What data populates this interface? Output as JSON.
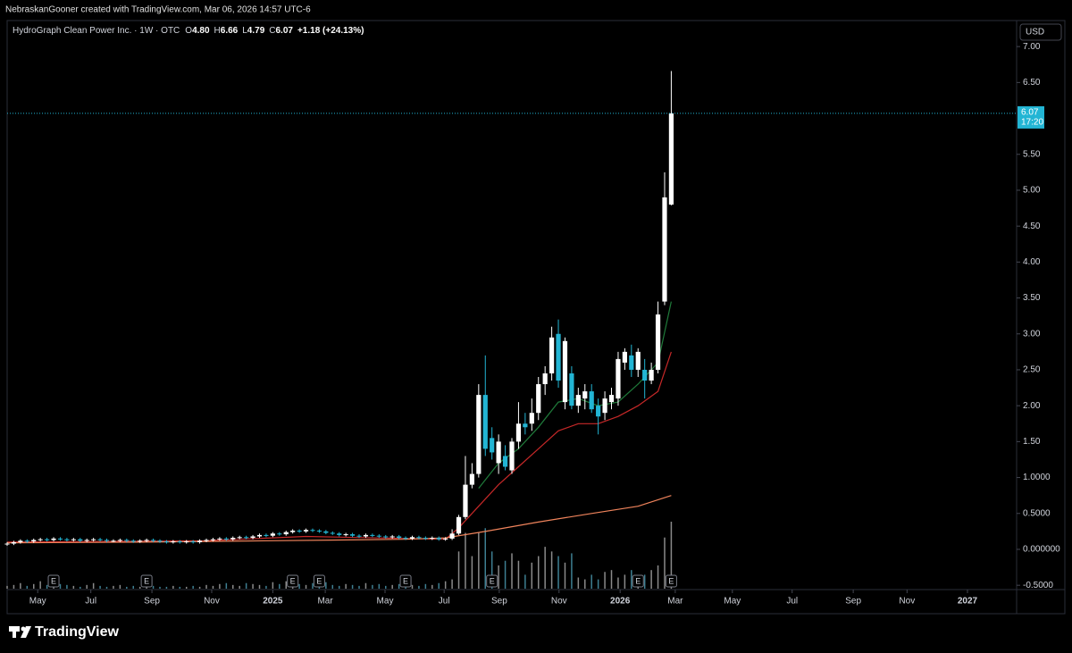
{
  "header": {
    "credit": "NebraskanGooner created with TradingView.com, Mar 06, 2026 14:57 UTC-6",
    "brand": "TradingView"
  },
  "chart_data": {
    "type": "candlestick",
    "legend": {
      "name": "HydroGraph Clean Power Inc. · 1W · OTC",
      "ohlc": [
        {
          "key": "O",
          "value": "4.80"
        },
        {
          "key": "H",
          "value": "6.66"
        },
        {
          "key": "L",
          "value": "4.79"
        },
        {
          "key": "C",
          "value": "6.07"
        }
      ],
      "change": "+1.18 (+24.13%)"
    },
    "currency": "USD",
    "last_price_label": "6.07",
    "countdown": "17:20",
    "up_color": "#ffffff",
    "down_color": "#22b5d4",
    "x": [
      0,
      1,
      2,
      3,
      4,
      5,
      6,
      7,
      8,
      9,
      10,
      11,
      12,
      13,
      14,
      15,
      16,
      17,
      18,
      19,
      20,
      21,
      22,
      23,
      24,
      25,
      26,
      27,
      28,
      29,
      30,
      31,
      32,
      33,
      34,
      35,
      36,
      37,
      38,
      39,
      40,
      41,
      42,
      43,
      44,
      45,
      46,
      47,
      48,
      49,
      50,
      51,
      52,
      53,
      54,
      55,
      56,
      57,
      58,
      59,
      60,
      61,
      62,
      63,
      64,
      65,
      66,
      67,
      68,
      69,
      70,
      71,
      72,
      73,
      74,
      75,
      76,
      77,
      78,
      79,
      80,
      81,
      82,
      83,
      84,
      85,
      86,
      87,
      88,
      89,
      90,
      91,
      92,
      93,
      94,
      95,
      96,
      97,
      98,
      99,
      100
    ],
    "open": [
      0.07,
      0.08,
      0.1,
      0.12,
      0.11,
      0.13,
      0.14,
      0.13,
      0.15,
      0.14,
      0.13,
      0.14,
      0.12,
      0.13,
      0.14,
      0.13,
      0.12,
      0.12,
      0.13,
      0.12,
      0.11,
      0.12,
      0.13,
      0.12,
      0.11,
      0.1,
      0.11,
      0.1,
      0.11,
      0.1,
      0.12,
      0.13,
      0.14,
      0.15,
      0.14,
      0.16,
      0.17,
      0.16,
      0.18,
      0.2,
      0.19,
      0.22,
      0.21,
      0.24,
      0.26,
      0.25,
      0.27,
      0.26,
      0.25,
      0.23,
      0.22,
      0.2,
      0.21,
      0.19,
      0.18,
      0.2,
      0.19,
      0.18,
      0.17,
      0.18,
      0.16,
      0.15,
      0.17,
      0.16,
      0.15,
      0.16,
      0.14,
      0.15,
      0.22,
      0.45,
      0.9,
      1.05,
      2.15,
      1.55,
      1.2,
      1.3,
      1.1,
      1.5,
      1.75,
      1.75,
      1.9,
      2.3,
      2.45,
      3.0,
      2.05,
      2.45,
      2.0,
      2.1,
      2.2,
      2.0,
      1.9,
      2.05,
      2.1,
      2.6,
      2.7,
      2.5,
      2.5,
      2.35,
      2.5,
      3.45,
      4.8
    ],
    "high": [
      0.1,
      0.12,
      0.14,
      0.14,
      0.15,
      0.16,
      0.16,
      0.17,
      0.17,
      0.16,
      0.16,
      0.16,
      0.15,
      0.16,
      0.16,
      0.15,
      0.14,
      0.15,
      0.15,
      0.14,
      0.14,
      0.15,
      0.15,
      0.14,
      0.13,
      0.13,
      0.13,
      0.13,
      0.13,
      0.14,
      0.15,
      0.16,
      0.17,
      0.17,
      0.18,
      0.19,
      0.19,
      0.2,
      0.22,
      0.22,
      0.24,
      0.24,
      0.26,
      0.28,
      0.28,
      0.29,
      0.29,
      0.28,
      0.27,
      0.25,
      0.24,
      0.23,
      0.23,
      0.21,
      0.22,
      0.22,
      0.21,
      0.2,
      0.2,
      0.2,
      0.18,
      0.19,
      0.19,
      0.18,
      0.18,
      0.18,
      0.17,
      0.28,
      0.48,
      1.3,
      1.2,
      2.3,
      2.7,
      1.7,
      1.6,
      1.45,
      1.55,
      2.05,
      1.9,
      2.1,
      2.4,
      2.55,
      3.1,
      3.2,
      2.95,
      2.55,
      2.25,
      2.3,
      2.3,
      2.1,
      2.2,
      2.25,
      2.75,
      2.8,
      2.85,
      2.8,
      2.65,
      2.6,
      3.45,
      5.25,
      6.66
    ],
    "low": [
      0.05,
      0.06,
      0.08,
      0.09,
      0.09,
      0.11,
      0.11,
      0.11,
      0.12,
      0.11,
      0.11,
      0.1,
      0.1,
      0.11,
      0.11,
      0.1,
      0.1,
      0.1,
      0.1,
      0.09,
      0.09,
      0.1,
      0.1,
      0.09,
      0.08,
      0.08,
      0.08,
      0.08,
      0.08,
      0.08,
      0.1,
      0.11,
      0.12,
      0.12,
      0.12,
      0.14,
      0.14,
      0.14,
      0.16,
      0.17,
      0.17,
      0.19,
      0.19,
      0.22,
      0.23,
      0.23,
      0.24,
      0.23,
      0.21,
      0.2,
      0.18,
      0.18,
      0.17,
      0.16,
      0.16,
      0.17,
      0.16,
      0.15,
      0.15,
      0.14,
      0.13,
      0.13,
      0.14,
      0.13,
      0.13,
      0.12,
      0.12,
      0.13,
      0.2,
      0.42,
      0.85,
      1.0,
      1.3,
      1.25,
      1.05,
      1.1,
      1.05,
      1.4,
      1.6,
      1.65,
      1.8,
      2.15,
      2.35,
      2.25,
      1.95,
      1.95,
      1.9,
      1.95,
      1.9,
      1.6,
      1.8,
      1.95,
      2.0,
      2.5,
      2.4,
      2.4,
      2.1,
      2.3,
      2.45,
      3.4,
      4.79
    ],
    "close": [
      0.08,
      0.1,
      0.12,
      0.11,
      0.13,
      0.14,
      0.13,
      0.15,
      0.14,
      0.13,
      0.14,
      0.12,
      0.13,
      0.14,
      0.13,
      0.12,
      0.12,
      0.13,
      0.12,
      0.11,
      0.12,
      0.13,
      0.12,
      0.11,
      0.1,
      0.11,
      0.1,
      0.11,
      0.1,
      0.12,
      0.13,
      0.14,
      0.15,
      0.14,
      0.16,
      0.17,
      0.16,
      0.18,
      0.2,
      0.19,
      0.22,
      0.21,
      0.24,
      0.26,
      0.25,
      0.27,
      0.26,
      0.25,
      0.23,
      0.22,
      0.2,
      0.21,
      0.19,
      0.18,
      0.2,
      0.19,
      0.18,
      0.17,
      0.18,
      0.16,
      0.15,
      0.17,
      0.16,
      0.15,
      0.16,
      0.14,
      0.15,
      0.22,
      0.45,
      0.9,
      1.05,
      2.15,
      1.4,
      1.35,
      1.5,
      1.15,
      1.5,
      1.75,
      1.7,
      1.9,
      2.3,
      2.45,
      2.95,
      2.35,
      2.9,
      2.0,
      2.15,
      2.2,
      1.95,
      1.85,
      2.1,
      2.15,
      2.65,
      2.75,
      2.5,
      2.75,
      2.35,
      2.5,
      3.27,
      4.9,
      6.07
    ],
    "volume": [
      3,
      4,
      6,
      3,
      5,
      8,
      4,
      3,
      5,
      4,
      3,
      2,
      4,
      6,
      3,
      2,
      3,
      4,
      2,
      3,
      2,
      5,
      3,
      2,
      2,
      3,
      2,
      2,
      3,
      2,
      4,
      3,
      5,
      6,
      4,
      3,
      6,
      5,
      4,
      3,
      7,
      5,
      8,
      6,
      5,
      4,
      6,
      5,
      7,
      4,
      3,
      5,
      4,
      3,
      6,
      4,
      5,
      3,
      4,
      5,
      6,
      4,
      3,
      5,
      4,
      6,
      8,
      10,
      40,
      60,
      35,
      60,
      65,
      40,
      25,
      30,
      38,
      30,
      15,
      28,
      35,
      45,
      40,
      35,
      28,
      38,
      12,
      10,
      15,
      10,
      18,
      20,
      12,
      15,
      20,
      10,
      15,
      20,
      25,
      55,
      72
    ],
    "volume_color": "#8a8a8a",
    "lines": [
      {
        "color": "#1f7a3a",
        "x": [
          71,
          74,
          77,
          80,
          83,
          86,
          89,
          92,
          95,
          98,
          100
        ],
        "values": [
          0.85,
          1.2,
          1.4,
          1.7,
          2.05,
          2.1,
          2.0,
          2.05,
          2.3,
          2.6,
          3.45
        ]
      },
      {
        "color": "#c62828",
        "x": [
          0,
          30,
          45,
          66,
          68,
          71,
          74,
          77,
          80,
          83,
          86,
          89,
          92,
          95,
          98,
          100
        ],
        "values": [
          0.1,
          0.12,
          0.18,
          0.14,
          0.3,
          0.6,
          0.9,
          1.15,
          1.4,
          1.65,
          1.75,
          1.75,
          1.85,
          2.0,
          2.2,
          2.75
        ]
      },
      {
        "color": "#f0845c",
        "x": [
          0,
          20,
          40,
          60,
          66,
          72,
          80,
          88,
          95,
          100
        ],
        "values": [
          0.09,
          0.1,
          0.12,
          0.14,
          0.16,
          0.25,
          0.38,
          0.5,
          0.6,
          0.75
        ]
      }
    ],
    "earnings": {
      "label": "E",
      "x": [
        7,
        21,
        43,
        47,
        60,
        73,
        95,
        100
      ]
    },
    "xlim": [
      0,
      152
    ],
    "xticks": [
      {
        "value": 4.6,
        "label": "May"
      },
      {
        "value": 12.6,
        "label": "Jul"
      },
      {
        "value": 21.8,
        "label": "Sep"
      },
      {
        "value": 30.8,
        "label": "Nov"
      },
      {
        "value": 40.0,
        "label": "2025"
      },
      {
        "value": 47.9,
        "label": "Mar"
      },
      {
        "value": 56.9,
        "label": "May"
      },
      {
        "value": 65.8,
        "label": "Jul"
      },
      {
        "value": 74.1,
        "label": "Sep"
      },
      {
        "value": 83.1,
        "label": "Nov"
      },
      {
        "value": 92.3,
        "label": "2026"
      },
      {
        "value": 100.6,
        "label": "Mar"
      },
      {
        "value": 109.2,
        "label": "May"
      },
      {
        "value": 118.2,
        "label": "Jul"
      },
      {
        "value": 127.4,
        "label": "Sep"
      },
      {
        "value": 135.5,
        "label": "Nov"
      },
      {
        "value": 144.6,
        "label": "2027"
      }
    ],
    "ylim": [
      -0.56,
      7.35
    ],
    "yticks": [
      {
        "value": 7,
        "label": "7.00"
      },
      {
        "value": 6.5,
        "label": "6.50"
      },
      {
        "value": 5.5,
        "label": "5.50"
      },
      {
        "value": 5,
        "label": "5.00"
      },
      {
        "value": 4.5,
        "label": "4.50"
      },
      {
        "value": 4,
        "label": "4.00"
      },
      {
        "value": 3.5,
        "label": "3.50"
      },
      {
        "value": 3,
        "label": "3.00"
      },
      {
        "value": 2.5,
        "label": "2.50"
      },
      {
        "value": 2,
        "label": "2.00"
      },
      {
        "value": 1.5,
        "label": "1.50"
      },
      {
        "value": 1,
        "label": "1.0000"
      },
      {
        "value": 0.5,
        "label": "0.5000"
      },
      {
        "value": 0,
        "label": "0.000000"
      },
      {
        "value": -0.5,
        "label": "-0.5000"
      }
    ]
  }
}
